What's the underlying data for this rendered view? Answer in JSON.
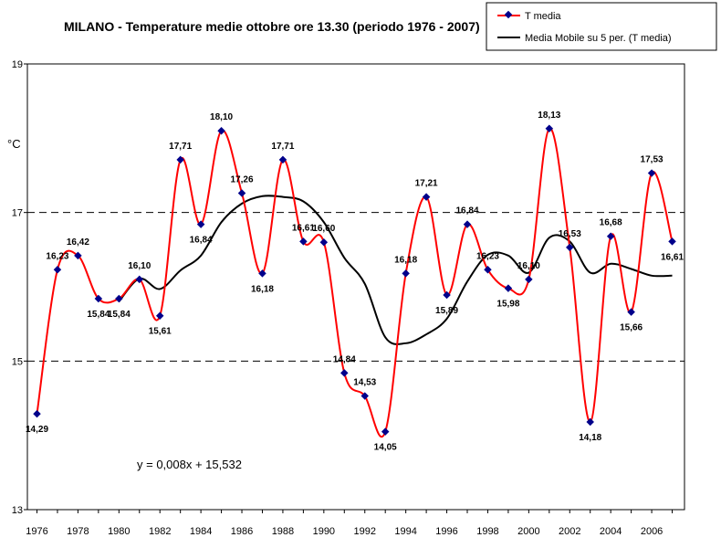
{
  "chart_data": {
    "type": "line",
    "title": "MILANO  - Temperature medie ottobre ore 13.30 (periodo 1976 - 2007)",
    "ylabel": "°C",
    "xlabel": "",
    "ylim": [
      13,
      19
    ],
    "xlim": [
      1976,
      2007.6
    ],
    "yticks": [
      13,
      15,
      17,
      19
    ],
    "xticks": [
      1976,
      1978,
      1980,
      1982,
      1984,
      1986,
      1988,
      1990,
      1992,
      1994,
      1996,
      1998,
      2000,
      2002,
      2004,
      2006
    ],
    "reference_lines": [
      15,
      17
    ],
    "equation": "y = 0,008x + 15,532",
    "legend_position": "top-right",
    "x": [
      1976,
      1977,
      1978,
      1979,
      1980,
      1981,
      1982,
      1983,
      1984,
      1985,
      1986,
      1987,
      1988,
      1989,
      1990,
      1991,
      1992,
      1993,
      1994,
      1995,
      1996,
      1997,
      1998,
      1999,
      2000,
      2001,
      2002,
      2003,
      2004,
      2005,
      2006,
      2007
    ],
    "series": [
      {
        "name": "T media",
        "color": "#ff0000",
        "marker_color": "#00008b",
        "values": [
          14.29,
          16.23,
          16.42,
          15.84,
          15.84,
          16.1,
          15.61,
          17.71,
          16.84,
          18.1,
          17.26,
          16.18,
          17.71,
          16.61,
          16.6,
          14.84,
          14.53,
          14.05,
          16.18,
          17.21,
          15.89,
          16.84,
          16.23,
          15.98,
          16.1,
          18.13,
          16.53,
          14.18,
          16.68,
          15.66,
          17.53,
          16.61
        ],
        "labels": [
          "14,29",
          "16,23",
          "16,42",
          "15,84",
          "15,84",
          "16,10",
          "15,61",
          "17,71",
          "16,84",
          "18,10",
          "17,26",
          "16,18",
          "17,71",
          "16,61",
          "16,60",
          "14,84",
          "14,53",
          "14,05",
          "16,18",
          "17,21",
          "15,89",
          "16,84",
          "16,23",
          "15,98",
          "16,10",
          "18,13",
          "16,53",
          "14,18",
          "16,68",
          "15,66",
          "17,53",
          "16,61"
        ]
      },
      {
        "name": "Media Mobile su 5 per. (T media)",
        "color": "#000000",
        "x": [
          1980,
          1981,
          1982,
          1983,
          1984,
          1985,
          1986,
          1987,
          1988,
          1989,
          1990,
          1991,
          1992,
          1993,
          1994,
          1995,
          1996,
          1997,
          1998,
          1999,
          2000,
          2001,
          2002,
          2003,
          2004,
          2005,
          2006,
          2007
        ],
        "values": [
          15.8,
          16.11,
          15.97,
          16.22,
          16.42,
          16.87,
          17.12,
          17.22,
          17.21,
          17.15,
          16.87,
          16.39,
          16.04,
          15.32,
          15.24,
          15.36,
          15.57,
          16.07,
          16.43,
          16.42,
          16.19,
          16.66,
          16.61,
          16.19,
          16.31,
          16.24,
          16.15,
          16.15
        ]
      }
    ]
  }
}
